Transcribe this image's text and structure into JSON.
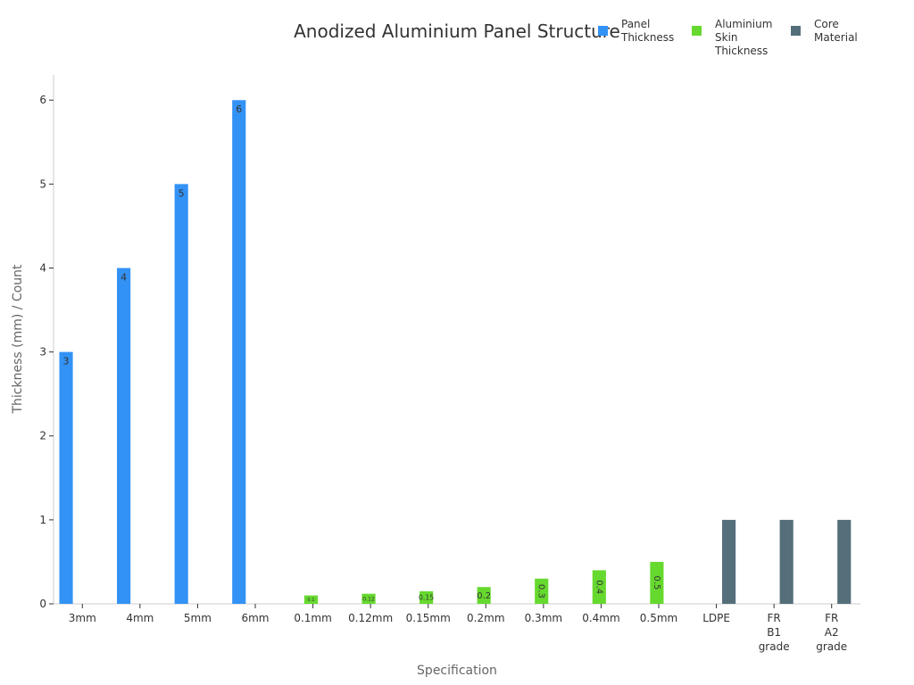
{
  "chart_data": {
    "type": "bar",
    "title": "Anodized Aluminium Panel Structure",
    "xlabel": "Specification",
    "ylabel": "Thickness (mm) / Count",
    "ylim": [
      0,
      6.3
    ],
    "yticks": [
      "0",
      "1",
      "2",
      "3",
      "4",
      "5",
      "6"
    ],
    "legend_position": "top-right",
    "categories": [
      "3mm",
      "4mm",
      "5mm",
      "6mm",
      "0.1mm",
      "0.12mm",
      "0.15mm",
      "0.2mm",
      "0.3mm",
      "0.4mm",
      "0.5mm",
      "LDPE",
      "FR B1 grade",
      "FR A2 grade"
    ],
    "category_lines": [
      [
        "3mm"
      ],
      [
        "4mm"
      ],
      [
        "5mm"
      ],
      [
        "6mm"
      ],
      [
        "0.1mm"
      ],
      [
        "0.12mm"
      ],
      [
        "0.15mm"
      ],
      [
        "0.2mm"
      ],
      [
        "0.3mm"
      ],
      [
        "0.4mm"
      ],
      [
        "0.5mm"
      ],
      [
        "LDPE"
      ],
      [
        "FR",
        "B1",
        "grade"
      ],
      [
        "FR",
        "A2",
        "grade"
      ]
    ],
    "series": [
      {
        "name": "Panel Thickness",
        "name_lines": [
          "Panel",
          "Thickness"
        ],
        "color": "#3392f5",
        "values": [
          3,
          4,
          5,
          6,
          null,
          null,
          null,
          null,
          null,
          null,
          null,
          null,
          null,
          null
        ],
        "labels": [
          "3",
          "4",
          "5",
          "6",
          null,
          null,
          null,
          null,
          null,
          null,
          null,
          null,
          null,
          null
        ]
      },
      {
        "name": "Aluminium Skin Thickness",
        "name_lines": [
          "Aluminium",
          "Skin",
          "Thickness"
        ],
        "color": "#66d92e",
        "values": [
          null,
          null,
          null,
          null,
          0.1,
          0.12,
          0.15,
          0.2,
          0.3,
          0.4,
          0.5,
          null,
          null,
          null
        ],
        "labels": [
          null,
          null,
          null,
          null,
          "0.1",
          "0.12",
          "0.15",
          "0.2",
          "0.3",
          "0.4",
          "0.5",
          null,
          null,
          null
        ]
      },
      {
        "name": "Core Material",
        "name_lines": [
          "Core",
          "Material"
        ],
        "color": "#546e7a",
        "values": [
          null,
          null,
          null,
          null,
          null,
          null,
          null,
          null,
          null,
          null,
          null,
          1,
          1,
          1
        ],
        "labels": [
          null,
          null,
          null,
          null,
          null,
          null,
          null,
          null,
          null,
          null,
          null,
          null,
          null,
          null
        ]
      }
    ]
  }
}
